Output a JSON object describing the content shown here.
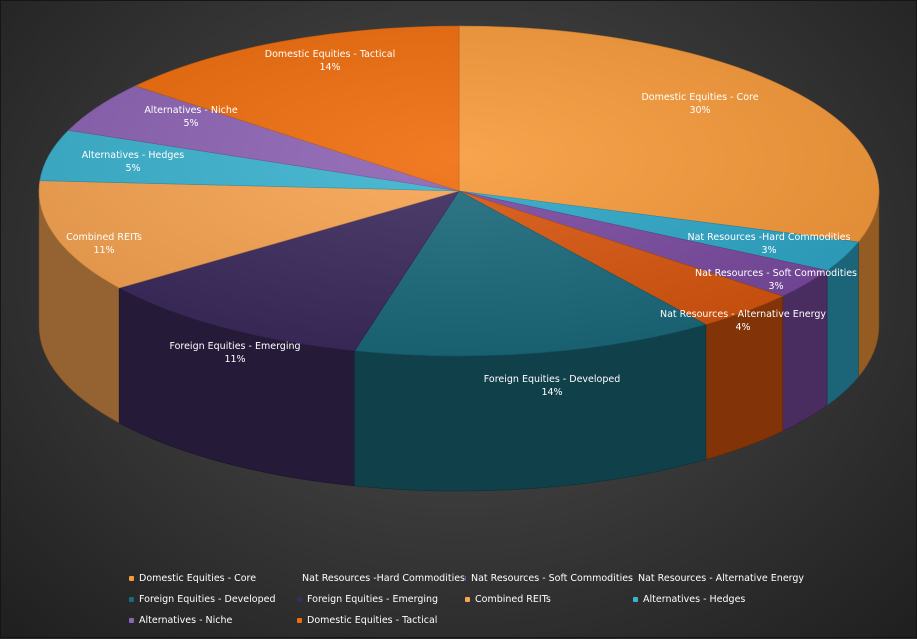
{
  "chart_data": {
    "type": "pie",
    "style": "3d",
    "legend_position": "bottom",
    "slices": [
      {
        "name": "Domestic Equities - Core",
        "label": "Domestic Equities - Core",
        "value": 30,
        "display": "30%",
        "color": "#f79a3a"
      },
      {
        "name": "Nat Resources -Hard Commodities",
        "label": "Nat Resources -Hard Commodities",
        "value": 3,
        "display": "3%",
        "color": "#2ea8c8"
      },
      {
        "name": "Nat Resources - Soft Commodities",
        "label": "Nat Resources - Soft Commodities",
        "value": 3,
        "display": "3%",
        "color": "#7a4aa0"
      },
      {
        "name": "Nat Resources - Alternative Energy",
        "label": "Nat Resources - Alternative Energy",
        "value": 4,
        "display": "4%",
        "color": "#d9560e"
      },
      {
        "name": "Foreign Equities - Developed",
        "label": "Foreign Equities - Developed",
        "value": 14,
        "display": "14%",
        "color": "#1b6a7c"
      },
      {
        "name": "Foreign Equities - Emerging",
        "label": "Foreign Equities - Emerging",
        "value": 11,
        "display": "11%",
        "color": "#3d2b5e"
      },
      {
        "name": "Combined REITs",
        "label": "Combined REITs",
        "value": 11,
        "display": "11%",
        "color": "#f8a552"
      },
      {
        "name": "Alternatives - Hedges",
        "label": "Alternatives - Hedges",
        "value": 5,
        "display": "5%",
        "color": "#3bb3d0"
      },
      {
        "name": "Alternatives - Niche",
        "label": "Alternatives - Niche",
        "value": 5,
        "display": "5%",
        "color": "#8d64b4"
      },
      {
        "name": "Domestic Equities - Tactical",
        "label": "Domestic Equities - Tactical",
        "value": 14,
        "display": "14%",
        "color": "#f06d0c"
      }
    ],
    "legend": [
      "Domestic Equities - Core",
      "Nat Resources -Hard Commodities",
      "Nat Resources - Soft Commodities",
      "Nat Resources - Alternative Energy",
      "Foreign Equities - Developed",
      "Foreign Equities - Emerging",
      "Combined REITs",
      "Alternatives - Hedges",
      "Alternatives - Niche",
      "Domestic Equities - Tactical"
    ]
  }
}
